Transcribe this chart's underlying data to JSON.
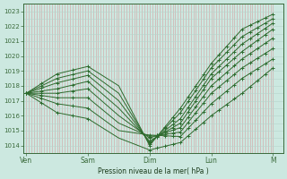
{
  "title": "Pression niveau de la mer( hPa )",
  "bg_color": "#cce8e0",
  "line_color": "#2d6a2d",
  "grid_color_v": "#d4a0a0",
  "grid_color_h": "#b8d4cc",
  "ylim": [
    1013.5,
    1023.5
  ],
  "yticks": [
    1014,
    1015,
    1016,
    1017,
    1018,
    1019,
    1020,
    1021,
    1022,
    1023
  ],
  "xtick_labels": [
    "Ven",
    "Sam",
    "Dim",
    "Lun",
    "M"
  ],
  "xtick_positions": [
    0,
    24,
    48,
    72,
    96
  ],
  "xlim": [
    -1,
    100
  ],
  "series": [
    {
      "key_x": [
        0,
        12,
        24,
        36,
        48,
        60,
        72,
        84,
        96
      ],
      "key_y": [
        1017.5,
        1018.8,
        1019.3,
        1018.0,
        1014.0,
        1016.5,
        1019.5,
        1021.8,
        1022.8
      ]
    },
    {
      "key_x": [
        0,
        12,
        24,
        36,
        48,
        60,
        72,
        84,
        96
      ],
      "key_y": [
        1017.5,
        1018.5,
        1019.0,
        1017.5,
        1014.1,
        1016.2,
        1019.2,
        1021.3,
        1022.5
      ]
    },
    {
      "key_x": [
        0,
        12,
        24,
        36,
        48,
        60,
        72,
        84,
        96
      ],
      "key_y": [
        1017.5,
        1018.2,
        1018.7,
        1017.0,
        1014.2,
        1015.8,
        1018.8,
        1020.8,
        1022.2
      ]
    },
    {
      "key_x": [
        0,
        12,
        24,
        36,
        48,
        60,
        72,
        84,
        96
      ],
      "key_y": [
        1017.5,
        1017.8,
        1018.3,
        1016.5,
        1014.3,
        1015.5,
        1018.5,
        1020.3,
        1021.8
      ]
    },
    {
      "key_x": [
        0,
        12,
        24,
        36,
        48,
        60,
        72,
        84,
        96
      ],
      "key_y": [
        1017.5,
        1017.5,
        1017.8,
        1016.0,
        1014.5,
        1015.2,
        1018.0,
        1019.8,
        1021.2
      ]
    },
    {
      "key_x": [
        0,
        12,
        24,
        36,
        48,
        60,
        72,
        84,
        96
      ],
      "key_y": [
        1017.5,
        1017.2,
        1017.2,
        1015.5,
        1014.6,
        1014.9,
        1017.5,
        1019.2,
        1020.5
      ]
    },
    {
      "key_x": [
        0,
        12,
        24,
        36,
        48,
        60,
        72,
        84,
        96
      ],
      "key_y": [
        1017.5,
        1016.8,
        1016.5,
        1015.0,
        1014.7,
        1014.6,
        1016.8,
        1018.5,
        1019.8
      ]
    },
    {
      "key_x": [
        0,
        12,
        24,
        36,
        48,
        60,
        72,
        84,
        96
      ],
      "key_y": [
        1017.5,
        1016.2,
        1015.8,
        1014.5,
        1013.7,
        1014.2,
        1016.0,
        1017.5,
        1019.2
      ]
    }
  ],
  "n_grid_v": 96,
  "marker_start_x": 48
}
